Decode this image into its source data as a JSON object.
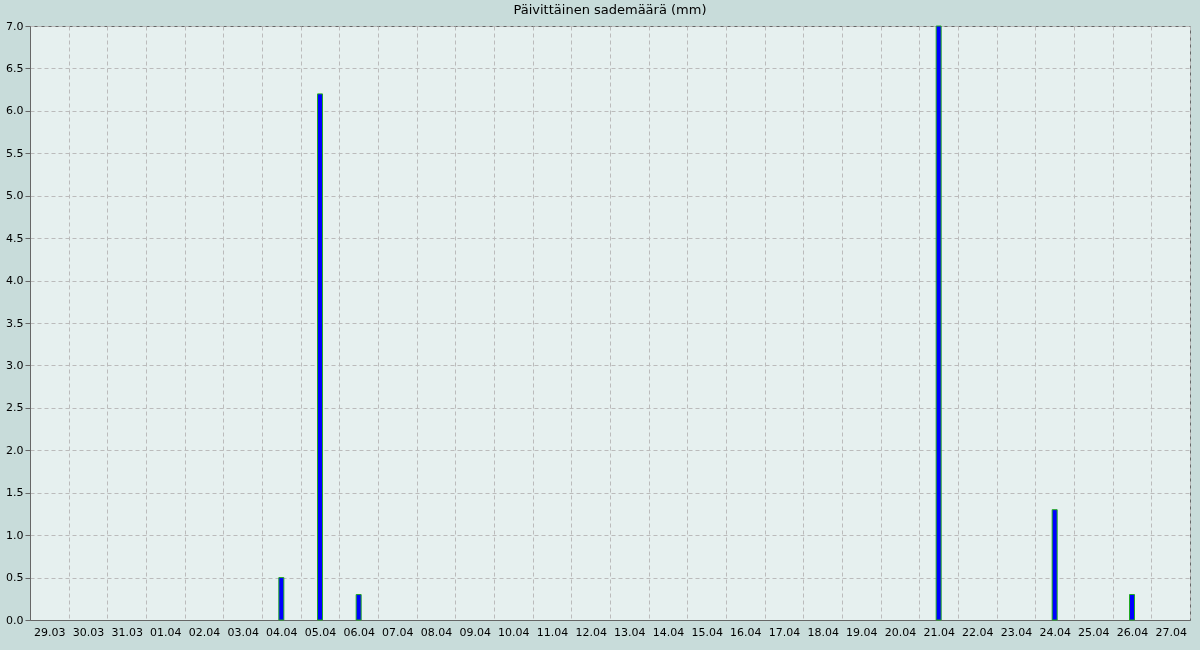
{
  "chart_data": {
    "type": "bar",
    "title": "Päivittäinen sademäärä (mm)",
    "categories": [
      "29.03",
      "30.03",
      "31.03",
      "01.04",
      "02.04",
      "03.04",
      "04.04",
      "05.04",
      "06.04",
      "07.04",
      "08.04",
      "09.04",
      "10.04",
      "11.04",
      "12.04",
      "13.04",
      "14.04",
      "15.04",
      "16.04",
      "17.04",
      "18.04",
      "19.04",
      "20.04",
      "21.04",
      "22.04",
      "23.04",
      "24.04",
      "25.04",
      "26.04",
      "27.04"
    ],
    "values": [
      null,
      null,
      null,
      null,
      null,
      null,
      0.5,
      6.2,
      0.3,
      null,
      null,
      null,
      null,
      null,
      null,
      null,
      null,
      null,
      null,
      null,
      null,
      null,
      null,
      7.0,
      null,
      null,
      1.3,
      null,
      0.3,
      null
    ],
    "color": "#0000ff",
    "ylim": [
      0,
      7
    ],
    "yticks": [
      {
        "value": 0,
        "label": "0.0"
      },
      {
        "value": 0.5,
        "label": "0.5"
      },
      {
        "value": 1,
        "label": "1.0"
      },
      {
        "value": 1.5,
        "label": "1.5"
      },
      {
        "value": 2,
        "label": "2.0"
      },
      {
        "value": 2.5,
        "label": "2.5"
      },
      {
        "value": 3,
        "label": "3.0"
      },
      {
        "value": 3.5,
        "label": "3.5"
      },
      {
        "value": 4,
        "label": "4.0"
      },
      {
        "value": 4.5,
        "label": "4.5"
      },
      {
        "value": 5,
        "label": "5.0"
      },
      {
        "value": 5.5,
        "label": "5.5"
      },
      {
        "value": 6,
        "label": "6.0"
      },
      {
        "value": 6.5,
        "label": "6.5"
      },
      {
        "value": 7,
        "label": "7.0"
      }
    ],
    "grid": true
  }
}
